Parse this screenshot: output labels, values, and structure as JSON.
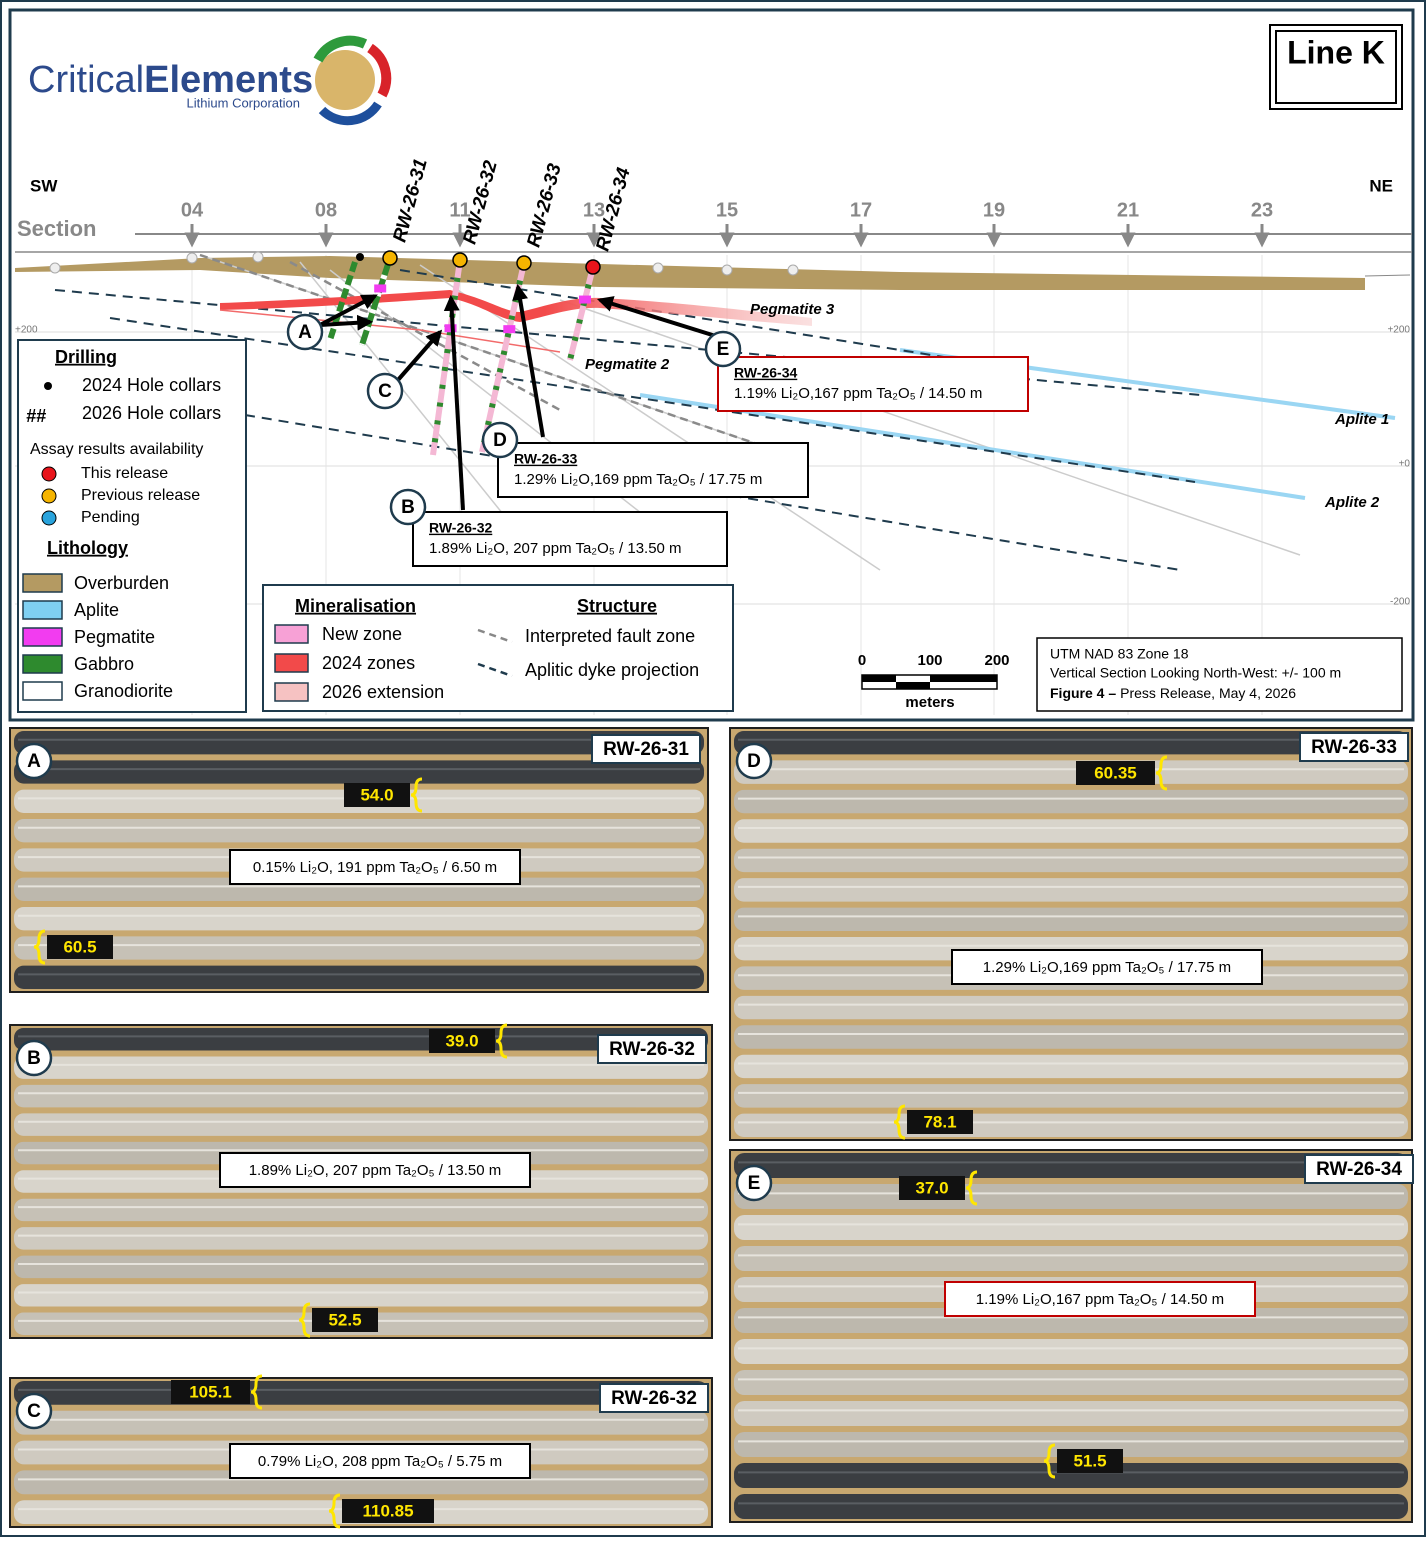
{
  "logo": {
    "name": "Critical",
    "name_bold": "Elements",
    "subtitle": "Lithium Corporation"
  },
  "title": "Line K",
  "section": {
    "left": "SW",
    "right": "NE",
    "label": "Section",
    "stations": [
      "04",
      "08",
      "11",
      "13",
      "15",
      "17",
      "19",
      "21",
      "23"
    ]
  },
  "elevations": {
    "left": [
      "+200"
    ],
    "right": [
      "+200",
      "+0",
      "-200"
    ]
  },
  "holes": [
    {
      "name": "RW-26-31",
      "status": "Previous release"
    },
    {
      "name": "RW-26-32",
      "status": "Previous release"
    },
    {
      "name": "RW-26-33",
      "status": "Previous release"
    },
    {
      "name": "RW-26-34",
      "status": "This release"
    }
  ],
  "units": [
    "Pegmatite 3",
    "Pegmatite 2",
    "Aplite 1",
    "Aplite 2"
  ],
  "callouts": [
    {
      "letter": "A"
    },
    {
      "letter": "B",
      "hole": "RW-26-32",
      "result": "1.89% Li₂O, 207 ppm Ta₂O₅ / 13.50 m"
    },
    {
      "letter": "C"
    },
    {
      "letter": "D",
      "hole": "RW-26-33",
      "result": "1.29% Li₂O,169 ppm Ta₂O₅ / 17.75 m"
    },
    {
      "letter": "E",
      "hole": "RW-26-34",
      "result": "1.19% Li₂O,167 ppm Ta₂O₅ / 14.50 m"
    }
  ],
  "legend": {
    "drilling": "Drilling",
    "collars": [
      "2024 Hole collars",
      "2026 Hole collars"
    ],
    "collar_symbol_2026": "##",
    "assay_title": "Assay results availability",
    "assay": [
      {
        "label": "This release",
        "color": "#e8141b"
      },
      {
        "label": "Previous release",
        "color": "#f5b400"
      },
      {
        "label": "Pending",
        "color": "#29a3dc"
      }
    ],
    "lithology_title": "Lithology",
    "lithology": [
      {
        "label": "Overburden",
        "color": "#b49a62"
      },
      {
        "label": "Aplite",
        "color": "#7fd0f2"
      },
      {
        "label": "Pegmatite",
        "color": "#f23cf0"
      },
      {
        "label": "Gabbro",
        "color": "#2e8a2e"
      },
      {
        "label": "Granodiorite",
        "color": "#ffffff"
      }
    ]
  },
  "mineralisation": {
    "title": "Mineralisation",
    "items": [
      {
        "label": "New zone",
        "color": "#f7a1d6"
      },
      {
        "label": "2024 zones",
        "color": "#f24a4a"
      },
      {
        "label": "2026 extension",
        "color": "#f6c2c2"
      }
    ]
  },
  "structure": {
    "title": "Structure",
    "items": [
      "Interpreted fault zone",
      "Aplitic dyke projection"
    ]
  },
  "scale": {
    "labels": [
      "0",
      "100",
      "200"
    ],
    "unit": "meters"
  },
  "info": {
    "lines": [
      "UTM NAD 83 Zone 18",
      "Vertical Section Looking North-West: +/- 100 m"
    ],
    "figure": "Figure 4 –",
    "release": "Press Release, May 4, 2026"
  },
  "photos": [
    {
      "letter": "A",
      "hole": "RW-26-31",
      "depths": [
        "54.0",
        "60.5"
      ],
      "result": "0.15% Li₂O, 191 ppm Ta₂O₅ / 6.50 m"
    },
    {
      "letter": "B",
      "hole": "RW-26-32",
      "depths": [
        "39.0",
        "52.5"
      ],
      "result": "1.89% Li₂O, 207 ppm Ta₂O₅ / 13.50 m"
    },
    {
      "letter": "C",
      "hole": "RW-26-32",
      "depths": [
        "105.1",
        "110.85"
      ],
      "result": "0.79% Li₂O, 208 ppm Ta₂O₅ / 5.75 m"
    },
    {
      "letter": "D",
      "hole": "RW-26-33",
      "depths": [
        "60.35",
        "78.1"
      ],
      "result": "1.29% Li₂O,169 ppm Ta₂O₅ / 17.75 m"
    },
    {
      "letter": "E",
      "hole": "RW-26-34",
      "depths": [
        "37.0",
        "51.5"
      ],
      "result": "1.19% Li₂O,167 ppm Ta₂O₅ / 14.50 m"
    }
  ]
}
